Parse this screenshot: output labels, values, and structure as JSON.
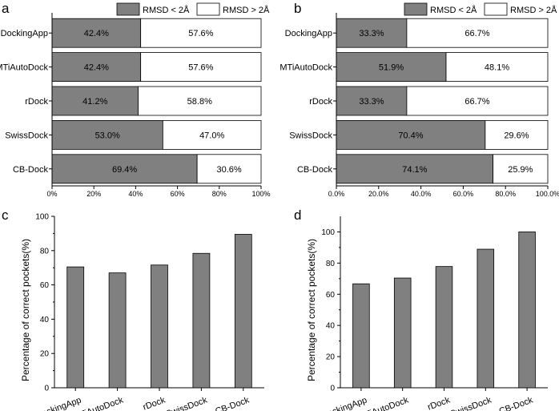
{
  "chart_data": [
    {
      "panel": "a",
      "type": "bar",
      "orientation": "horizontal",
      "stacked": true,
      "categories": [
        "DockingApp",
        "MTiAutoDock",
        "rDock",
        "SwissDock",
        "CB-Dock"
      ],
      "series": [
        {
          "name": "RMSD < 2Å",
          "values": [
            42.4,
            42.4,
            41.2,
            53.0,
            69.4
          ],
          "labels": [
            "42.4%",
            "42.4%",
            "41.2%",
            "53.0%",
            "69.4%"
          ],
          "color": "#808080"
        },
        {
          "name": "RMSD > 2Å",
          "values": [
            57.6,
            57.6,
            58.8,
            47.0,
            30.6
          ],
          "labels": [
            "57.6%",
            "57.6%",
            "58.8%",
            "47.0%",
            "30.6%"
          ],
          "color": "#ffffff"
        }
      ],
      "xlim": [
        0,
        100
      ],
      "xticks": [
        0,
        20,
        40,
        60,
        80,
        100
      ],
      "xtick_labels": [
        "0%",
        "20%",
        "40%",
        "60%",
        "80%",
        "100%"
      ],
      "legend": "top-center"
    },
    {
      "panel": "b",
      "type": "bar",
      "orientation": "horizontal",
      "stacked": true,
      "categories": [
        "DockingApp",
        "MTiAutoDock",
        "rDock",
        "SwissDock",
        "CB-Dock"
      ],
      "series": [
        {
          "name": "RMSD < 2Å",
          "values": [
            33.3,
            51.9,
            33.3,
            70.4,
            74.1
          ],
          "labels": [
            "33.3%",
            "51.9%",
            "33.3%",
            "70.4%",
            "74.1%"
          ],
          "color": "#808080"
        },
        {
          "name": "RMSD > 2Å",
          "values": [
            66.7,
            48.1,
            66.7,
            29.6,
            25.9
          ],
          "labels": [
            "66.7%",
            "48.1%",
            "66.7%",
            "29.6%",
            "25.9%"
          ],
          "color": "#ffffff"
        }
      ],
      "xlim": [
        0,
        100
      ],
      "xticks": [
        0,
        20,
        40,
        60,
        80,
        100
      ],
      "xtick_labels": [
        "0.0%",
        "20.0%",
        "40.0%",
        "60.0%",
        "80.0%",
        "100.0%"
      ],
      "legend": "top-center"
    },
    {
      "panel": "c",
      "type": "bar",
      "categories": [
        "DockingApp",
        "MTiAutoDock",
        "rDock",
        "SwissDock",
        "CB-Dock"
      ],
      "values": [
        70.5,
        67.0,
        71.6,
        78.4,
        89.5
      ],
      "ylabel": "Percentage of correct pockets(%)",
      "ylim": [
        0,
        100
      ],
      "yticks": [
        0,
        20,
        40,
        60,
        80,
        100
      ],
      "color": "#808080"
    },
    {
      "panel": "d",
      "type": "bar",
      "categories": [
        "DockingApp",
        "MTiAutoDock",
        "rDock",
        "SwissDock",
        "CB-Dock"
      ],
      "values": [
        66.7,
        70.4,
        77.8,
        88.9,
        100.0
      ],
      "ylabel": "Percentage of correct pockets(%)",
      "ylim": [
        0,
        110
      ],
      "yticks": [
        0,
        20,
        40,
        60,
        80,
        100
      ],
      "color": "#808080"
    }
  ]
}
